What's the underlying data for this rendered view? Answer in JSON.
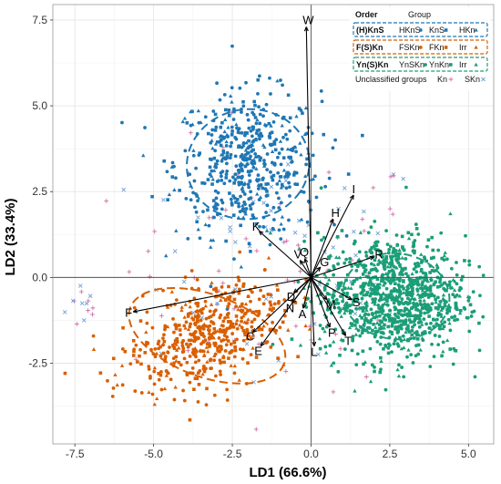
{
  "chart_data": {
    "type": "scatter",
    "xlabel": "LD1 (66.6%)",
    "ylabel": "LD2 (33.4%)",
    "xlim": [
      -8.2,
      5.8
    ],
    "ylim": [
      -4.85,
      7.95
    ],
    "x_ticks": [
      "-7.5",
      "-5.0",
      "-2.5",
      "0.0",
      "2.5",
      "5.0"
    ],
    "y_ticks": [
      "-2.5",
      "0.0",
      "2.5",
      "5.0",
      "7.5"
    ],
    "x_tick_values": [
      -7.5,
      -5.0,
      -2.5,
      0.0,
      2.5,
      5.0
    ],
    "y_tick_values": [
      -2.5,
      0.0,
      2.5,
      5.0,
      7.5
    ],
    "grid": true,
    "legend_position": "top-right",
    "legend": {
      "header_order": "Order",
      "header_group": "Group",
      "rows": [
        {
          "order": "(H)KnS",
          "color": "#1f77b4",
          "items": [
            {
              "label": "HKnS",
              "marker": "circle"
            },
            {
              "label": "KnS",
              "marker": "square"
            },
            {
              "label": "HKn",
              "marker": "triangle"
            }
          ]
        },
        {
          "order": "F(S)Kn",
          "color": "#d95f02",
          "items": [
            {
              "label": "FSKn",
              "marker": "circle"
            },
            {
              "label": "FKn",
              "marker": "square"
            },
            {
              "label": "Irr",
              "marker": "triangle"
            }
          ]
        },
        {
          "order": "Yn(S)Kn",
          "color": "#1b9e77",
          "items": [
            {
              "label": "YnSKn",
              "marker": "circle"
            },
            {
              "label": "YnKn",
              "marker": "square"
            },
            {
              "label": "Irr",
              "marker": "triangle"
            }
          ]
        }
      ],
      "unclassified_label": "Unclassified groups",
      "unclassified": [
        {
          "label": "Kn",
          "marker": "plus",
          "color": "#d16fa8"
        },
        {
          "label": "SKn",
          "marker": "cross",
          "color": "#6fa0d6"
        }
      ]
    },
    "clusters": [
      {
        "order": "(H)KnS",
        "color": "#1f77b4",
        "center": [
          -2.0,
          3.3
        ],
        "ellipse": {
          "cx": -2.0,
          "cy": 3.3,
          "rx": 3.9,
          "ry": 3.2,
          "angle_deg": -8
        },
        "n": 520,
        "spread": [
          1.15,
          1.05
        ]
      },
      {
        "order": "F(S)Kn",
        "color": "#d95f02",
        "center": [
          -3.3,
          -1.7
        ],
        "ellipse": {
          "cx": -3.3,
          "cy": -1.7,
          "rx": 5.2,
          "ry": 2.4,
          "angle_deg": 20
        },
        "n": 520,
        "spread": [
          1.2,
          0.7
        ]
      },
      {
        "order": "Yn(S)Kn",
        "color": "#1b9e77",
        "center": [
          2.6,
          -0.6
        ],
        "ellipse": {
          "cx": 2.7,
          "cy": -0.55,
          "rx": 3.4,
          "ry": 2.5,
          "angle_deg": 8
        },
        "n": 1000,
        "spread": [
          1.15,
          0.9
        ]
      }
    ],
    "unclassified_points": {
      "color_plus": "#d16fa8",
      "color_cross": "#6fa0d6",
      "n": 140
    },
    "loadings": [
      {
        "label": "W",
        "x": -0.15,
        "y": 7.3
      },
      {
        "label": "I",
        "x": 1.35,
        "y": 2.4
      },
      {
        "label": "H",
        "x": 0.7,
        "y": 1.7
      },
      {
        "label": "K",
        "x": -1.65,
        "y": 1.35
      },
      {
        "label": "R",
        "x": 2.0,
        "y": 0.6
      },
      {
        "label": "Q",
        "x": -0.2,
        "y": 0.55
      },
      {
        "label": "V",
        "x": -0.35,
        "y": 0.5
      },
      {
        "label": "G",
        "x": 0.3,
        "y": 0.3
      },
      {
        "label": "F",
        "x": -5.65,
        "y": -1.0
      },
      {
        "label": "D",
        "x": -0.55,
        "y": -0.45
      },
      {
        "label": "N",
        "x": -0.6,
        "y": -0.75
      },
      {
        "label": "A",
        "x": -0.25,
        "y": -0.9
      },
      {
        "label": "C",
        "x": -1.85,
        "y": -1.6
      },
      {
        "label": "E",
        "x": -1.6,
        "y": -2.0
      },
      {
        "label": "M",
        "x": 0.5,
        "y": -0.65
      },
      {
        "label": "S",
        "x": 1.3,
        "y": -0.65
      },
      {
        "label": "P",
        "x": 0.6,
        "y": -1.45
      },
      {
        "label": "T",
        "x": 1.1,
        "y": -1.7
      },
      {
        "label": "L",
        "x": 0.1,
        "y": -2.0
      }
    ]
  }
}
